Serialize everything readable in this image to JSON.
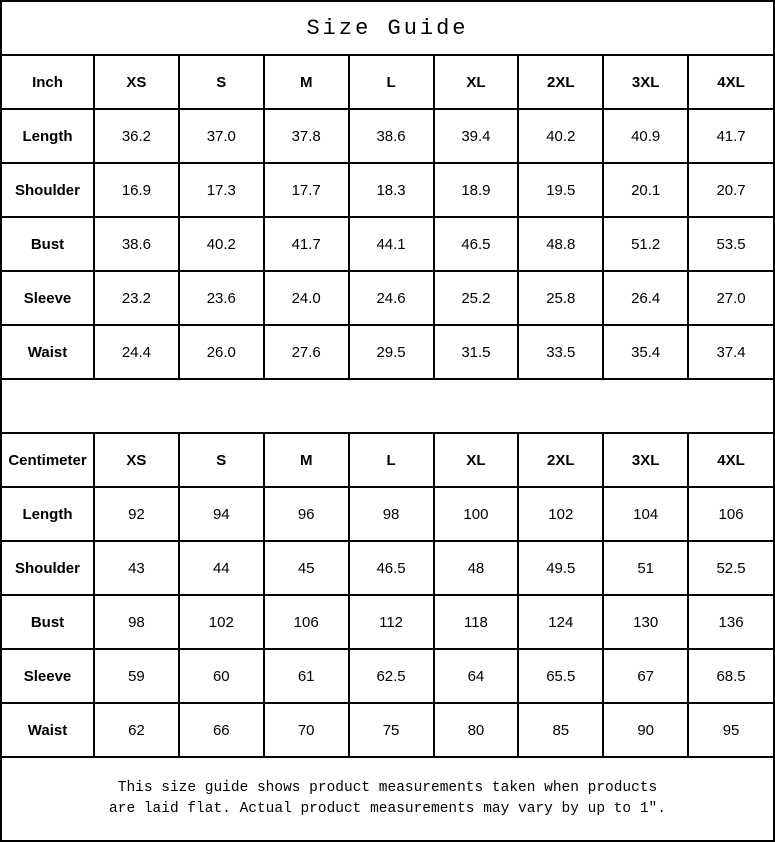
{
  "title": "Size Guide",
  "colors": {
    "border": "#000000",
    "background": "#ffffff",
    "text": "#000000"
  },
  "inch_table": {
    "unit_label": "Inch",
    "sizes": [
      "XS",
      "S",
      "M",
      "L",
      "XL",
      "2XL",
      "3XL",
      "4XL"
    ],
    "rows": [
      {
        "label": "Length",
        "values": [
          "36.2",
          "37.0",
          "37.8",
          "38.6",
          "39.4",
          "40.2",
          "40.9",
          "41.7"
        ]
      },
      {
        "label": "Shoulder",
        "values": [
          "16.9",
          "17.3",
          "17.7",
          "18.3",
          "18.9",
          "19.5",
          "20.1",
          "20.7"
        ]
      },
      {
        "label": "Bust",
        "values": [
          "38.6",
          "40.2",
          "41.7",
          "44.1",
          "46.5",
          "48.8",
          "51.2",
          "53.5"
        ]
      },
      {
        "label": "Sleeve",
        "values": [
          "23.2",
          "23.6",
          "24.0",
          "24.6",
          "25.2",
          "25.8",
          "26.4",
          "27.0"
        ]
      },
      {
        "label": "Waist",
        "values": [
          "24.4",
          "26.0",
          "27.6",
          "29.5",
          "31.5",
          "33.5",
          "35.4",
          "37.4"
        ]
      }
    ]
  },
  "cm_table": {
    "unit_label": "Centimeter",
    "sizes": [
      "XS",
      "S",
      "M",
      "L",
      "XL",
      "2XL",
      "3XL",
      "4XL"
    ],
    "rows": [
      {
        "label": "Length",
        "values": [
          "92",
          "94",
          "96",
          "98",
          "100",
          "102",
          "104",
          "106"
        ]
      },
      {
        "label": "Shoulder",
        "values": [
          "43",
          "44",
          "45",
          "46.5",
          "48",
          "49.5",
          "51",
          "52.5"
        ]
      },
      {
        "label": "Bust",
        "values": [
          "98",
          "102",
          "106",
          "112",
          "118",
          "124",
          "130",
          "136"
        ]
      },
      {
        "label": "Sleeve",
        "values": [
          "59",
          "60",
          "61",
          "62.5",
          "64",
          "65.5",
          "67",
          "68.5"
        ]
      },
      {
        "label": "Waist",
        "values": [
          "62",
          "66",
          "70",
          "75",
          "80",
          "85",
          "90",
          "95"
        ]
      }
    ]
  },
  "footer": {
    "line1": "This size guide shows product measurements taken when products",
    "line2": "are laid flat. Actual product measurements may vary by up to 1″."
  }
}
